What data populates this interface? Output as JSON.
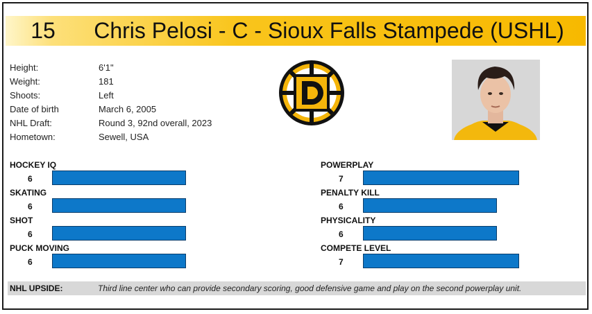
{
  "header": {
    "number": "15",
    "title": "Chris Pelosi - C - Sioux Falls Stampede (USHL)"
  },
  "info": [
    {
      "label": "Height:",
      "value": "6'1\""
    },
    {
      "label": "Weight:",
      "value": "181"
    },
    {
      "label": "Shoots:",
      "value": "Left"
    },
    {
      "label": "Date of birth",
      "value": "March 6, 2005"
    },
    {
      "label": "NHL Draft:",
      "value": "Round 3, 92nd overall, 2023"
    },
    {
      "label": "Hometown:",
      "value": "Sewell, USA"
    }
  ],
  "logo": {
    "letter": "D",
    "colors": {
      "gold": "#f5b50a",
      "black": "#111111"
    }
  },
  "skills_left": [
    {
      "name": "HOCKEY IQ",
      "value": "6",
      "score": 6
    },
    {
      "name": "SKATING",
      "value": "6",
      "score": 6
    },
    {
      "name": "SHOT",
      "value": "6",
      "score": 6
    },
    {
      "name": "PUCK MOVING",
      "value": "6",
      "score": 6
    }
  ],
  "skills_right": [
    {
      "name": "POWERPLAY",
      "value": "7",
      "score": 7
    },
    {
      "name": "PENALTY KILL",
      "value": "6",
      "score": 6
    },
    {
      "name": "PHYSICALITY",
      "value": "6",
      "score": 6
    },
    {
      "name": "COMPETE LEVEL",
      "value": "7",
      "score": 7
    }
  ],
  "upside": {
    "label": "NHL UPSIDE:",
    "text": "Third line center who can provide secondary scoring, good defensive game and play on the second powerplay unit."
  },
  "colors": {
    "bar": "#0d78c9",
    "header": "#f9c51c"
  }
}
